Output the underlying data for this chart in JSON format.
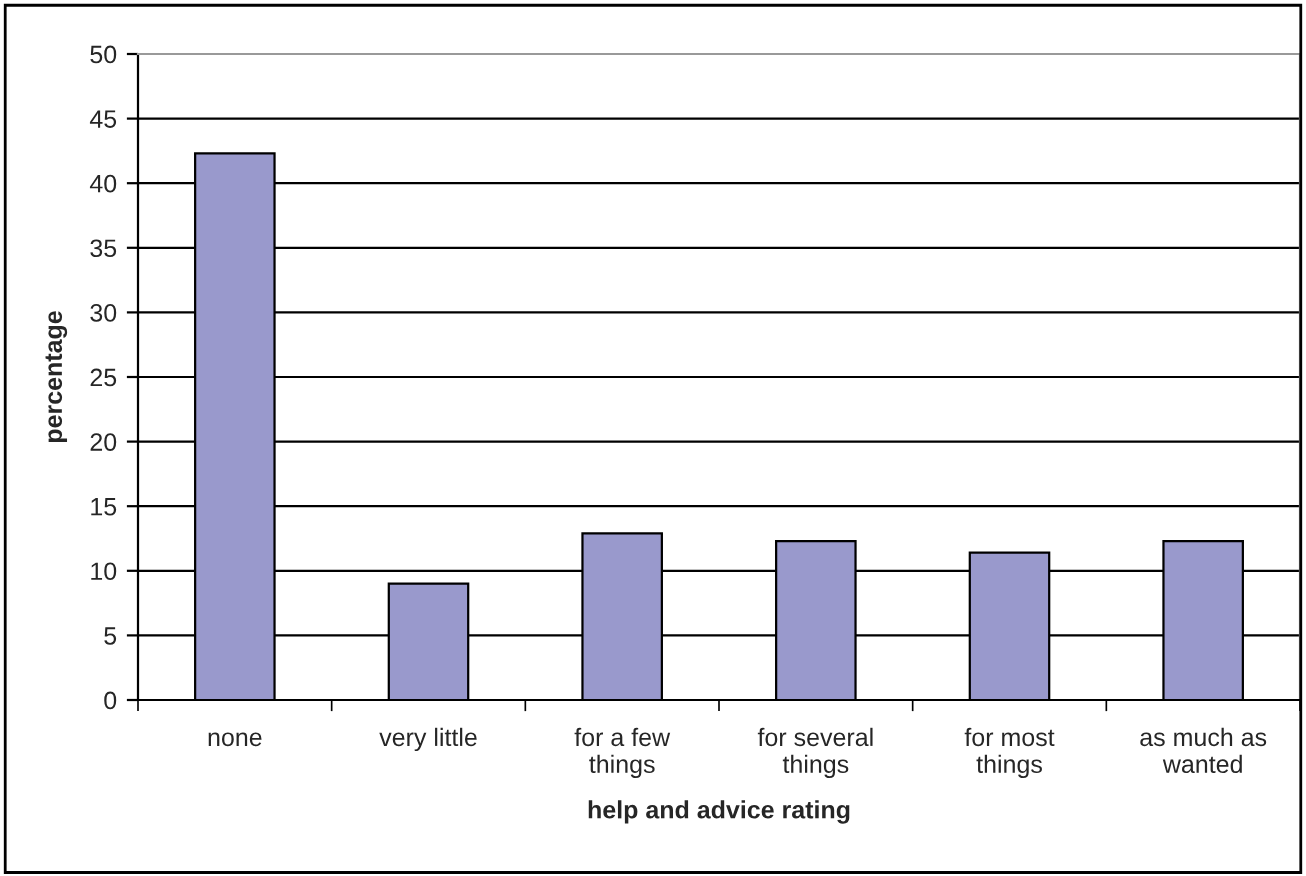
{
  "chart_data": {
    "type": "bar",
    "xlabel": "help and advice rating",
    "ylabel": "percentage",
    "categories": [
      "none",
      "very little",
      "for a few\nthings",
      "for several\nthings",
      "for most\nthings",
      "as much as\nwanted"
    ],
    "values": [
      42.3,
      9.0,
      12.9,
      12.3,
      11.4,
      12.3
    ],
    "color": "#9999cc",
    "ylim": [
      0,
      50
    ],
    "yticks": [
      0,
      5,
      10,
      15,
      20,
      25,
      30,
      35,
      40,
      45,
      50
    ],
    "grid": "y"
  }
}
